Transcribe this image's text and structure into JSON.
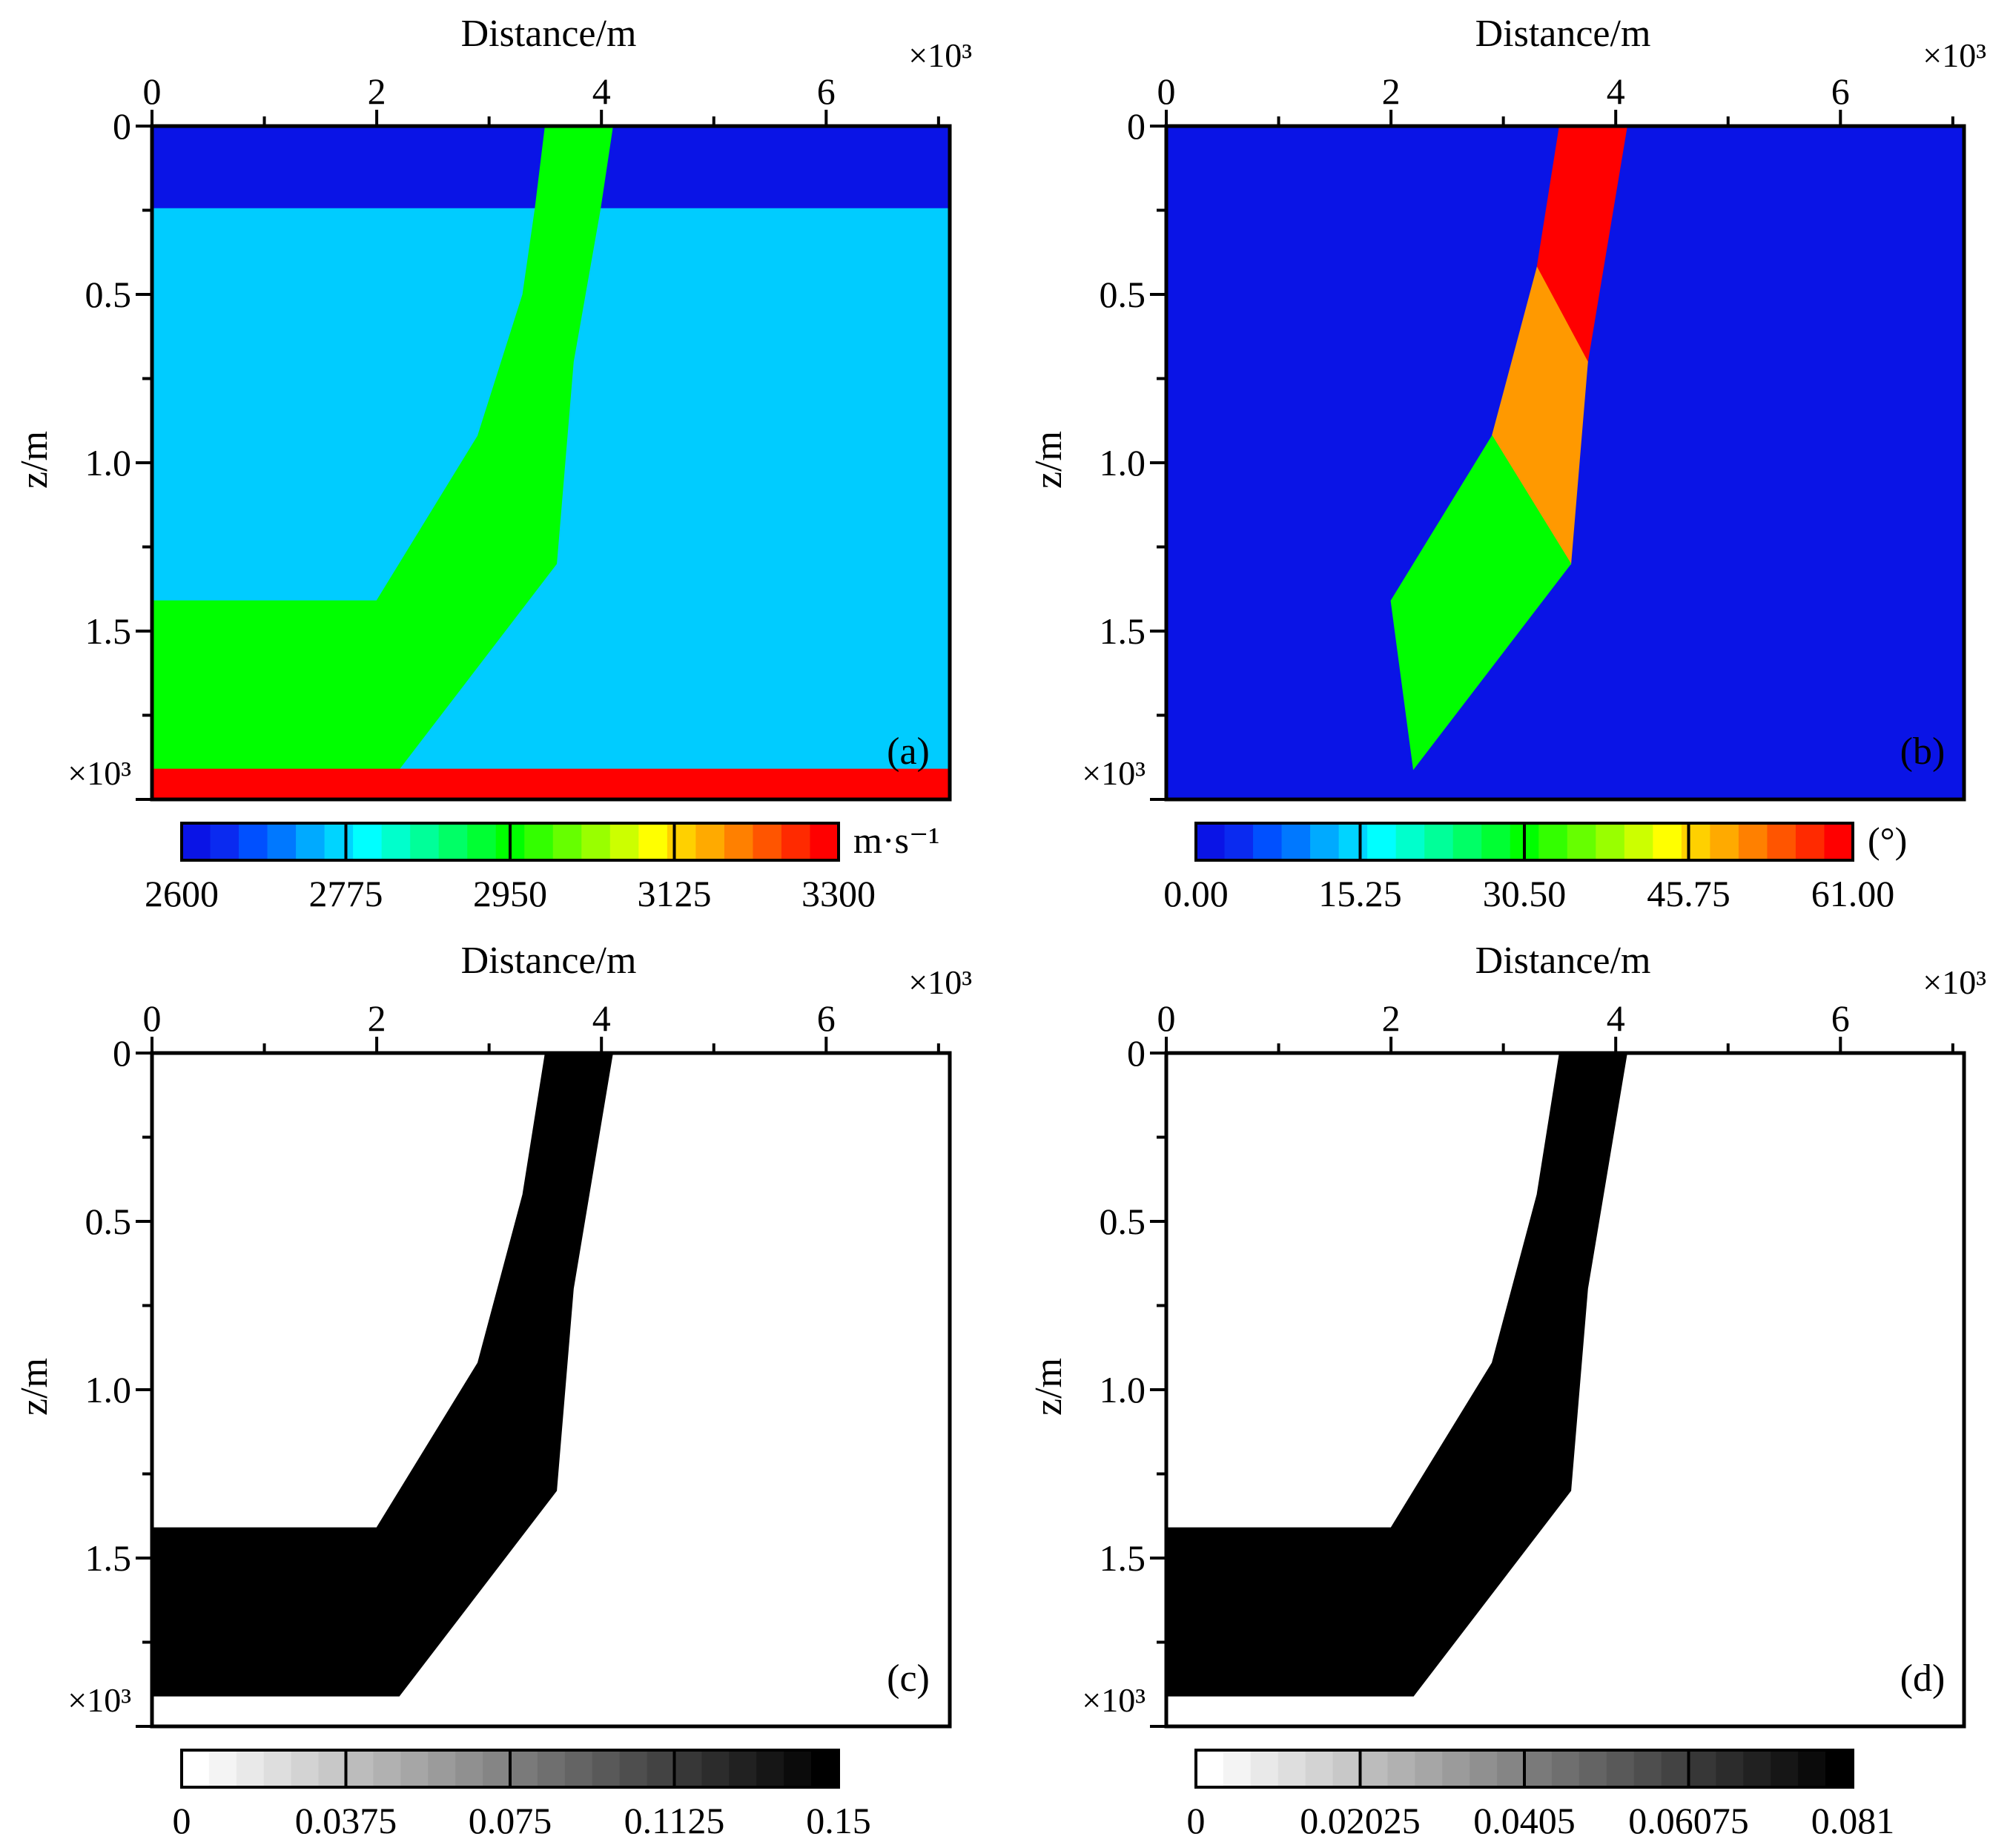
{
  "figure": {
    "panels": [
      "a",
      "b",
      "c",
      "d"
    ]
  },
  "chart_data": [
    {
      "type": "heatmap",
      "panel_label": "(a)",
      "xlabel": "Distance/m",
      "ylabel": "z/m",
      "x_multiplier": "×10³",
      "y_multiplier": "×10³",
      "xlim": [
        0,
        7.1
      ],
      "ylim": [
        0,
        2.0
      ],
      "x_ticks": [
        "0",
        "2",
        "4",
        "6"
      ],
      "y_ticks": [
        "0",
        "0.5",
        "1.0",
        "1.5"
      ],
      "colorbar": {
        "scale": "jet",
        "unit": "m·s⁻¹",
        "ticks": [
          "2600",
          "2775",
          "2950",
          "3125",
          "3300"
        ],
        "range": [
          2600,
          3300
        ]
      },
      "regions": [
        {
          "value": 2650,
          "color": "#0a14e6",
          "polygon": [
            [
              0,
              0
            ],
            [
              7.1,
              0
            ],
            [
              7.1,
              0.245
            ],
            [
              0,
              0.245
            ]
          ]
        },
        {
          "value": 2800,
          "color": "#00ccff",
          "polygon": [
            [
              0,
              0.245
            ],
            [
              7.1,
              0.245
            ],
            [
              7.1,
              1.91
            ],
            [
              0,
              1.91
            ]
          ]
        },
        {
          "value": 2960,
          "color": "#00ff00",
          "polygon": [
            [
              3.5,
              0
            ],
            [
              4.1,
              0
            ],
            [
              3.99,
              0.245
            ],
            [
              3.75,
              0.7
            ],
            [
              3.6,
              1.3
            ],
            [
              2.2,
              1.91
            ],
            [
              0,
              1.91
            ],
            [
              0,
              1.41
            ],
            [
              2.0,
              1.41
            ],
            [
              2.9,
              0.92
            ],
            [
              3.3,
              0.5
            ],
            [
              3.41,
              0.245
            ]
          ]
        },
        {
          "value": 3300,
          "color": "#ff0000",
          "polygon": [
            [
              0,
              1.91
            ],
            [
              7.1,
              1.91
            ],
            [
              7.1,
              2.0
            ],
            [
              0,
              2.0
            ]
          ]
        }
      ]
    },
    {
      "type": "heatmap",
      "panel_label": "(b)",
      "xlabel": "Distance/m",
      "ylabel": "z/m",
      "x_multiplier": "×10³",
      "y_multiplier": "×10³",
      "xlim": [
        0,
        7.1
      ],
      "ylim": [
        0,
        2.0
      ],
      "x_ticks": [
        "0",
        "2",
        "4",
        "6"
      ],
      "y_ticks": [
        "0",
        "0.5",
        "1.0",
        "1.5"
      ],
      "colorbar": {
        "scale": "jet",
        "unit": "(°)",
        "ticks": [
          "0.00",
          "15.25",
          "30.50",
          "45.75",
          "61.00"
        ],
        "range": [
          0,
          61
        ]
      },
      "regions": [
        {
          "value": 0,
          "color": "#0a14e6",
          "polygon": [
            [
              0,
              0
            ],
            [
              7.1,
              0
            ],
            [
              7.1,
              2.0
            ],
            [
              0,
              2.0
            ]
          ]
        },
        {
          "value": 61,
          "color": "#ff0000",
          "polygon": [
            [
              3.5,
              0
            ],
            [
              4.1,
              0
            ],
            [
              3.75,
              0.7
            ],
            [
              3.3,
              0.42
            ]
          ]
        },
        {
          "value": 46,
          "color": "#ff9900",
          "polygon": [
            [
              3.3,
              0.42
            ],
            [
              3.75,
              0.7
            ],
            [
              3.6,
              1.3
            ],
            [
              2.9,
              0.92
            ]
          ]
        },
        {
          "value": 30,
          "color": "#00ff00",
          "polygon": [
            [
              2.9,
              0.92
            ],
            [
              3.6,
              1.3
            ],
            [
              2.2,
              1.91
            ],
            [
              2.0,
              1.41
            ]
          ]
        }
      ]
    },
    {
      "type": "heatmap",
      "panel_label": "(c)",
      "xlabel": "Distance/m",
      "ylabel": "z/m",
      "x_multiplier": "×10³",
      "y_multiplier": "×10³",
      "xlim": [
        0,
        7.1
      ],
      "ylim": [
        0,
        2.0
      ],
      "x_ticks": [
        "0",
        "2",
        "4",
        "6"
      ],
      "y_ticks": [
        "0",
        "0.5",
        "1.0",
        "1.5"
      ],
      "colorbar": {
        "scale": "gray",
        "unit": "",
        "ticks": [
          "0",
          "0.0375",
          "0.075",
          "0.1125",
          "0.15"
        ],
        "range": [
          0,
          0.15
        ]
      },
      "regions": [
        {
          "value": 0,
          "color": "#ffffff",
          "polygon": [
            [
              0,
              0
            ],
            [
              7.1,
              0
            ],
            [
              7.1,
              2.0
            ],
            [
              0,
              2.0
            ]
          ]
        },
        {
          "value": 0.15,
          "color": "#000000",
          "polygon": [
            [
              3.5,
              0
            ],
            [
              4.1,
              0
            ],
            [
              3.75,
              0.7
            ],
            [
              3.6,
              1.3
            ],
            [
              2.2,
              1.91
            ],
            [
              0,
              1.91
            ],
            [
              0,
              1.41
            ],
            [
              2.0,
              1.41
            ],
            [
              2.9,
              0.92
            ],
            [
              3.3,
              0.42
            ]
          ]
        }
      ]
    },
    {
      "type": "heatmap",
      "panel_label": "(d)",
      "xlabel": "Distance/m",
      "ylabel": "z/m",
      "x_multiplier": "×10³",
      "y_multiplier": "×10³",
      "xlim": [
        0,
        7.1
      ],
      "ylim": [
        0,
        2.0
      ],
      "x_ticks": [
        "0",
        "2",
        "4",
        "6"
      ],
      "y_ticks": [
        "0",
        "0.5",
        "1.0",
        "1.5"
      ],
      "colorbar": {
        "scale": "gray",
        "unit": "",
        "ticks": [
          "0",
          "0.02025",
          "0.0405",
          "0.06075",
          "0.081"
        ],
        "range": [
          0,
          0.081
        ]
      },
      "regions": [
        {
          "value": 0,
          "color": "#ffffff",
          "polygon": [
            [
              0,
              0
            ],
            [
              7.1,
              0
            ],
            [
              7.1,
              2.0
            ],
            [
              0,
              2.0
            ]
          ]
        },
        {
          "value": 0.081,
          "color": "#000000",
          "polygon": [
            [
              3.5,
              0
            ],
            [
              4.1,
              0
            ],
            [
              3.75,
              0.7
            ],
            [
              3.6,
              1.3
            ],
            [
              2.2,
              1.91
            ],
            [
              0,
              1.91
            ],
            [
              0,
              1.41
            ],
            [
              2.0,
              1.41
            ],
            [
              2.9,
              0.92
            ],
            [
              3.3,
              0.42
            ]
          ]
        }
      ]
    }
  ]
}
